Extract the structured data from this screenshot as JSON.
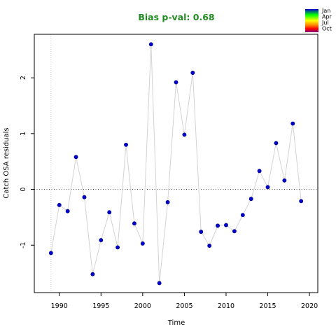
{
  "chart_data": {
    "type": "scatter",
    "title": "Bias p-val: 0.68",
    "xlabel": "Time",
    "ylabel": "Catch OSA residuals",
    "xlim": [
      1987,
      2021
    ],
    "ylim": [
      -1.85,
      2.78
    ],
    "xticks": [
      1990,
      1995,
      2000,
      2005,
      2010,
      2015,
      2020
    ],
    "yticks": [
      -1,
      0,
      1,
      2
    ],
    "grid": false,
    "legend_placement": "top-right",
    "series": [
      {
        "x": [
          1989,
          1990,
          1991,
          1992,
          1993,
          1994,
          1995,
          1996,
          1997,
          1998,
          1999,
          2000,
          2001,
          2002,
          2003,
          2004,
          2005,
          2006,
          2007,
          2008,
          2009,
          2010,
          2011,
          2012,
          2013,
          2014,
          2015,
          2016,
          2017,
          2018,
          2019
        ],
        "values": [
          -1.14,
          -0.28,
          -0.39,
          0.58,
          -0.14,
          -1.52,
          -0.91,
          -0.41,
          -1.04,
          0.8,
          -0.61,
          -0.97,
          2.6,
          -1.68,
          -0.23,
          1.92,
          0.98,
          2.09,
          -0.76,
          -1.01,
          -0.65,
          -0.64,
          -0.75,
          -0.46,
          -0.17,
          0.33,
          0.04,
          0.83,
          0.16,
          1.18,
          -0.21
        ]
      }
    ],
    "reference_lines": [
      {
        "axis": "y",
        "value": 0,
        "style": "dotted"
      },
      {
        "axis": "x",
        "value": 1989,
        "style": "dotted"
      }
    ],
    "legend": {
      "labels": [
        "Jan",
        "Apr",
        "Jul",
        "Oct"
      ]
    },
    "colors": {
      "title": "#228B22",
      "point_fill": "#0000CD",
      "point_stroke": "#00008B",
      "connector_line": "#D3D3D3",
      "zero_line": "#555555",
      "year_marker_line": "#C8C8C8",
      "season_gradient": [
        "#0000CD",
        "#00FF00",
        "#FFFF00",
        "#FF8000",
        "#FF0000",
        "#800080"
      ]
    }
  }
}
